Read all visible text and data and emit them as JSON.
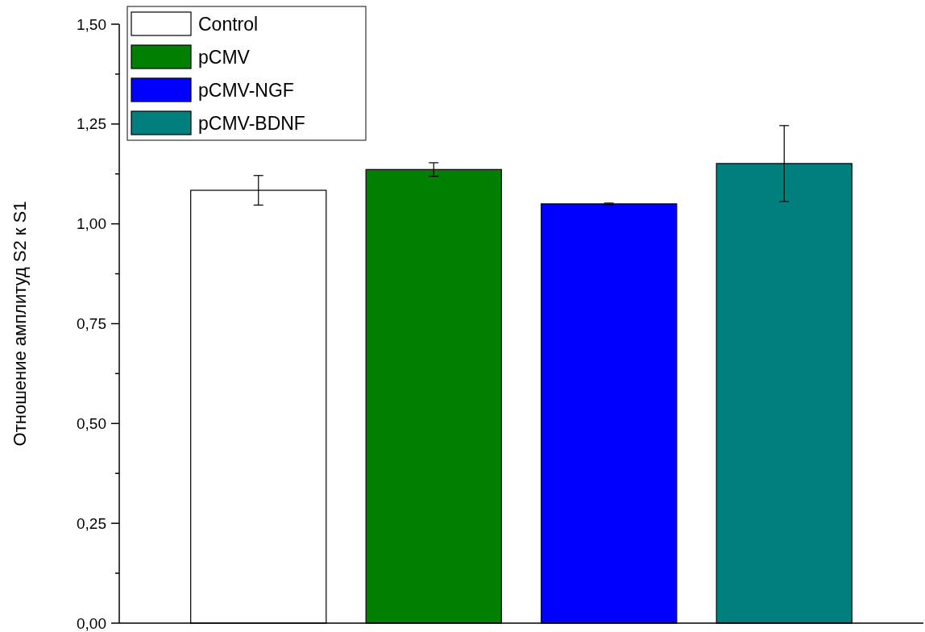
{
  "chart_data": {
    "type": "bar",
    "ylabel": "Отношение амплитуд S2 к S1",
    "categories": [
      null,
      null,
      null,
      null
    ],
    "series": [
      {
        "name": "Control",
        "color": "#ffffff",
        "values": [
          1.084,
          null,
          null,
          null
        ],
        "errors": [
          0.037,
          null,
          null,
          null
        ]
      },
      {
        "name": "pCMV",
        "color": "#007f00",
        "values": [
          null,
          1.136,
          null,
          null
        ],
        "errors": [
          null,
          0.017,
          null,
          null
        ]
      },
      {
        "name": "pCMV-NGF",
        "color": "#0000ff",
        "values": [
          null,
          null,
          1.05,
          null
        ],
        "errors": [
          null,
          null,
          0.002,
          null
        ]
      },
      {
        "name": "pCMV-BDNF",
        "color": "#007f7f",
        "values": [
          null,
          null,
          null,
          1.151
        ],
        "errors": [
          null,
          null,
          null,
          0.095
        ]
      }
    ],
    "ylim": [
      0,
      1.5
    ],
    "yticks": [
      {
        "value": 0,
        "label": "0,00"
      },
      {
        "value": 0.125,
        "label": null
      },
      {
        "value": 0.25,
        "label": "0,25"
      },
      {
        "value": 0.375,
        "label": null
      },
      {
        "value": 0.5,
        "label": "0,50"
      },
      {
        "value": 0.625,
        "label": null
      },
      {
        "value": 0.75,
        "label": "0,75"
      },
      {
        "value": 0.875,
        "label": null
      },
      {
        "value": 1,
        "label": "1,00"
      },
      {
        "value": 1.125,
        "label": null
      },
      {
        "value": 1.25,
        "label": "1,25"
      },
      {
        "value": 1.375,
        "label": null
      },
      {
        "value": 1.5,
        "label": "1,50"
      }
    ],
    "legend": "top left",
    "grid": false
  }
}
